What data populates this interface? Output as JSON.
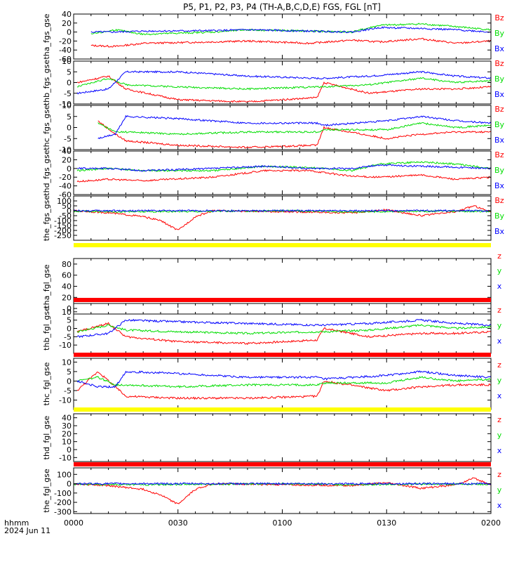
{
  "title": "P5, P1, P2, P3, P4 (TH-A,B,C,D,E) FGS, FGL [nT]",
  "xaxis": {
    "ticks": [
      "0000",
      "0030",
      "0100",
      "0130",
      "0200"
    ],
    "label_line1": "hhmm",
    "label_line2": "2024 Jun 11"
  },
  "colors": {
    "x": "#0000ff",
    "y": "#00dd00",
    "z": "#ff0000",
    "flag_yellow": "#ffff00",
    "flag_red": "#ff0000",
    "frame": "#000000"
  },
  "chart_data": {
    "type": "line",
    "x_range_minutes": [
      0,
      120
    ],
    "panels": [
      {
        "ylabel": "tha_fgs_gse",
        "ylim": [
          -60,
          40
        ],
        "yticks": [
          40,
          20,
          0,
          -20,
          -40,
          -60
        ],
        "legend": [
          "Bz",
          "By",
          "Bx"
        ],
        "flag": null,
        "series": [
          {
            "name": "Bz",
            "color": "z",
            "x": [
              5,
              12,
              20,
              40,
              50,
              68,
              80,
              88,
              100,
              110,
              120
            ],
            "y": [
              -30,
              -32,
              -25,
              -22,
              -20,
              -25,
              -18,
              -22,
              -15,
              -25,
              -20
            ]
          },
          {
            "name": "By",
            "color": "y",
            "x": [
              5,
              12,
              20,
              40,
              50,
              68,
              80,
              88,
              100,
              110,
              120
            ],
            "y": [
              -5,
              5,
              -5,
              0,
              5,
              2,
              0,
              15,
              18,
              12,
              5
            ]
          },
          {
            "name": "Bx",
            "color": "x",
            "x": [
              5,
              12,
              20,
              40,
              50,
              68,
              80,
              88,
              100,
              110,
              120
            ],
            "y": [
              0,
              0,
              2,
              3,
              5,
              2,
              0,
              10,
              8,
              5,
              0
            ]
          }
        ]
      },
      {
        "ylabel": "thb_fgs_gse",
        "ylim": [
          -10,
          10
        ],
        "yticks": [
          10,
          5,
          0,
          -5,
          -10
        ],
        "legend": [
          "Bz",
          "By",
          "Bx"
        ],
        "flag": null,
        "series": [
          {
            "name": "Bz",
            "color": "z",
            "x": [
              1,
              10,
              15,
              30,
              50,
              70,
              72,
              85,
              100,
              110,
              120
            ],
            "y": [
              0,
              3,
              -3,
              -8,
              -9,
              -7,
              0,
              -5,
              -3,
              -3,
              -2
            ]
          },
          {
            "name": "By",
            "color": "y",
            "x": [
              1,
              10,
              15,
              30,
              50,
              70,
              72,
              85,
              100,
              110,
              120
            ],
            "y": [
              -2,
              2,
              -1,
              -2,
              -3,
              -2,
              -2,
              -1,
              2,
              0,
              1
            ]
          },
          {
            "name": "Bx",
            "color": "x",
            "x": [
              1,
              10,
              15,
              30,
              50,
              70,
              72,
              85,
              100,
              110,
              120
            ],
            "y": [
              -5,
              -3,
              5,
              5,
              3,
              2,
              2,
              3,
              5,
              3,
              2
            ]
          }
        ]
      },
      {
        "ylabel": "thc_fgs_gse",
        "ylim": [
          -10,
          10
        ],
        "yticks": [
          10,
          5,
          0,
          -5,
          -10
        ],
        "legend": [
          "Bz",
          "By",
          "Bx"
        ],
        "flag": null,
        "series": [
          {
            "name": "Bz",
            "color": "z",
            "x": [
              7,
              12,
              15,
              30,
              50,
              70,
              72,
              90,
              100,
              110,
              120
            ],
            "y": [
              3,
              -3,
              -6,
              -8,
              -9,
              -8,
              0,
              -5,
              -3,
              -2,
              -2
            ]
          },
          {
            "name": "By",
            "color": "y",
            "x": [
              7,
              12,
              15,
              30,
              50,
              70,
              72,
              90,
              100,
              110,
              120
            ],
            "y": [
              2,
              -2,
              -2,
              -3,
              -2,
              -2,
              -1,
              -1,
              2,
              0,
              1
            ]
          },
          {
            "name": "Bx",
            "color": "x",
            "x": [
              7,
              12,
              15,
              30,
              50,
              70,
              72,
              90,
              100,
              110,
              120
            ],
            "y": [
              -5,
              -3,
              5,
              4,
              2,
              2,
              1,
              3,
              5,
              3,
              2
            ]
          }
        ]
      },
      {
        "ylabel": "thd_fgs_gse",
        "ylim": [
          -60,
          40
        ],
        "yticks": [
          40,
          20,
          0,
          -20,
          -40,
          -60
        ],
        "legend": [
          "Bz",
          "By",
          "Bx"
        ],
        "flag": null,
        "series": [
          {
            "name": "Bz",
            "color": "z",
            "x": [
              1,
              10,
              20,
              40,
              55,
              68,
              80,
              88,
              100,
              110,
              120
            ],
            "y": [
              -30,
              -25,
              -28,
              -20,
              -5,
              -5,
              -18,
              -20,
              -15,
              -25,
              -20
            ]
          },
          {
            "name": "By",
            "color": "y",
            "x": [
              1,
              10,
              20,
              40,
              55,
              68,
              80,
              88,
              100,
              110,
              120
            ],
            "y": [
              -5,
              0,
              -5,
              -5,
              5,
              2,
              -5,
              10,
              15,
              10,
              0
            ]
          },
          {
            "name": "Bx",
            "color": "x",
            "x": [
              1,
              10,
              20,
              40,
              55,
              68,
              80,
              88,
              100,
              110,
              120
            ],
            "y": [
              0,
              0,
              -5,
              0,
              5,
              0,
              0,
              8,
              5,
              3,
              0
            ]
          }
        ]
      },
      {
        "ylabel": "the_fgs_gse",
        "ylim": [
          -300,
          150
        ],
        "yticks": [
          100,
          50,
          0,
          -50,
          -100,
          -150,
          -200,
          -250
        ],
        "legend": [
          "Bz",
          "By",
          "Bx"
        ],
        "flag": null,
        "series": [
          {
            "name": "Bz",
            "color": "z",
            "x": [
              0,
              10,
              20,
              25,
              30,
              35,
              40,
              60,
              80,
              90,
              100,
              110,
              115,
              120
            ],
            "y": [
              0,
              -20,
              -60,
              -100,
              -200,
              -60,
              0,
              -10,
              -20,
              10,
              -50,
              -10,
              50,
              -10
            ]
          },
          {
            "name": "By",
            "color": "y",
            "x": [
              0,
              20,
              40,
              60,
              80,
              100,
              120
            ],
            "y": [
              -5,
              -10,
              -5,
              0,
              -10,
              -5,
              -5
            ]
          },
          {
            "name": "Bx",
            "color": "x",
            "x": [
              0,
              20,
              40,
              60,
              80,
              100,
              120
            ],
            "y": [
              0,
              0,
              0,
              0,
              0,
              0,
              0
            ]
          }
        ]
      },
      {
        "ylabel": "tha_fgl_gse",
        "ylim": [
          -10,
          90
        ],
        "yticks": [
          80,
          60,
          40,
          20,
          0
        ],
        "legend": [
          "z",
          "y",
          "x"
        ],
        "flag": "yellow",
        "series": []
      },
      {
        "ylabel": "thb_fgl_gse",
        "ylim": [
          -15,
          15
        ],
        "yticks": [
          10,
          5,
          0,
          -5,
          -10
        ],
        "legend": [
          "z",
          "y",
          "x"
        ],
        "flag": "red",
        "series": [
          {
            "name": "z",
            "color": "z",
            "x": [
              1,
              10,
              15,
              30,
              50,
              70,
              72,
              85,
              100,
              110,
              120
            ],
            "y": [
              -2,
              3,
              -5,
              -8,
              -9,
              -7,
              0,
              -5,
              -3,
              -3,
              -2
            ]
          },
          {
            "name": "y",
            "color": "y",
            "x": [
              1,
              10,
              15,
              30,
              50,
              70,
              72,
              85,
              100,
              110,
              120
            ],
            "y": [
              -2,
              2,
              -1,
              -2,
              -3,
              -2,
              -2,
              -1,
              2,
              0,
              1
            ]
          },
          {
            "name": "x",
            "color": "x",
            "x": [
              1,
              10,
              15,
              30,
              50,
              70,
              72,
              85,
              100,
              110,
              120
            ],
            "y": [
              -5,
              -3,
              5,
              4,
              3,
              2,
              2,
              3,
              5,
              3,
              2
            ]
          }
        ]
      },
      {
        "ylabel": "thc_fgl_gse",
        "ylim": [
          -15,
          12
        ],
        "yticks": [
          10,
          5,
          0,
          -5,
          -10
        ],
        "legend": [
          "z",
          "y",
          "x"
        ],
        "flag": "red",
        "series": [
          {
            "name": "z",
            "color": "z",
            "x": [
              1,
              7,
              12,
              15,
              30,
              50,
              70,
              72,
              90,
              100,
              110,
              120
            ],
            "y": [
              -5,
              5,
              -3,
              -8,
              -9,
              -9,
              -8,
              0,
              -5,
              -3,
              -2,
              -2
            ]
          },
          {
            "name": "y",
            "color": "y",
            "x": [
              1,
              7,
              12,
              15,
              30,
              50,
              70,
              72,
              90,
              100,
              110,
              120
            ],
            "y": [
              0,
              2,
              -2,
              -2,
              -3,
              -2,
              -2,
              -1,
              -1,
              2,
              0,
              1
            ]
          },
          {
            "name": "x",
            "color": "x",
            "x": [
              1,
              7,
              12,
              15,
              30,
              50,
              70,
              72,
              90,
              100,
              110,
              120
            ],
            "y": [
              0,
              -3,
              -3,
              5,
              4,
              2,
              2,
              1,
              3,
              5,
              3,
              2
            ]
          }
        ]
      },
      {
        "ylabel": "thd_fgl_gse",
        "ylim": [
          -15,
          45
        ],
        "yticks": [
          40,
          30,
          20,
          10,
          0,
          -10
        ],
        "legend": [
          "z",
          "y",
          "x"
        ],
        "flag": "yellow",
        "series": []
      },
      {
        "ylabel": "the_fgl_gse",
        "ylim": [
          -320,
          170
        ],
        "yticks": [
          100,
          0,
          -100,
          -200,
          -300
        ],
        "legend": [
          "z",
          "y",
          "x"
        ],
        "flag": "red",
        "series": [
          {
            "name": "z",
            "color": "z",
            "x": [
              0,
              10,
              20,
              25,
              30,
              35,
              40,
              60,
              80,
              90,
              100,
              110,
              115,
              120
            ],
            "y": [
              0,
              -20,
              -60,
              -120,
              -220,
              -60,
              0,
              -10,
              -20,
              10,
              -50,
              -10,
              60,
              -10
            ]
          },
          {
            "name": "y",
            "color": "y",
            "x": [
              0,
              20,
              40,
              60,
              80,
              100,
              120
            ],
            "y": [
              -5,
              -10,
              -5,
              0,
              -10,
              -5,
              -5
            ]
          },
          {
            "name": "x",
            "color": "x",
            "x": [
              0,
              20,
              40,
              60,
              80,
              100,
              120
            ],
            "y": [
              0,
              0,
              0,
              0,
              0,
              0,
              0
            ]
          }
        ]
      }
    ]
  }
}
